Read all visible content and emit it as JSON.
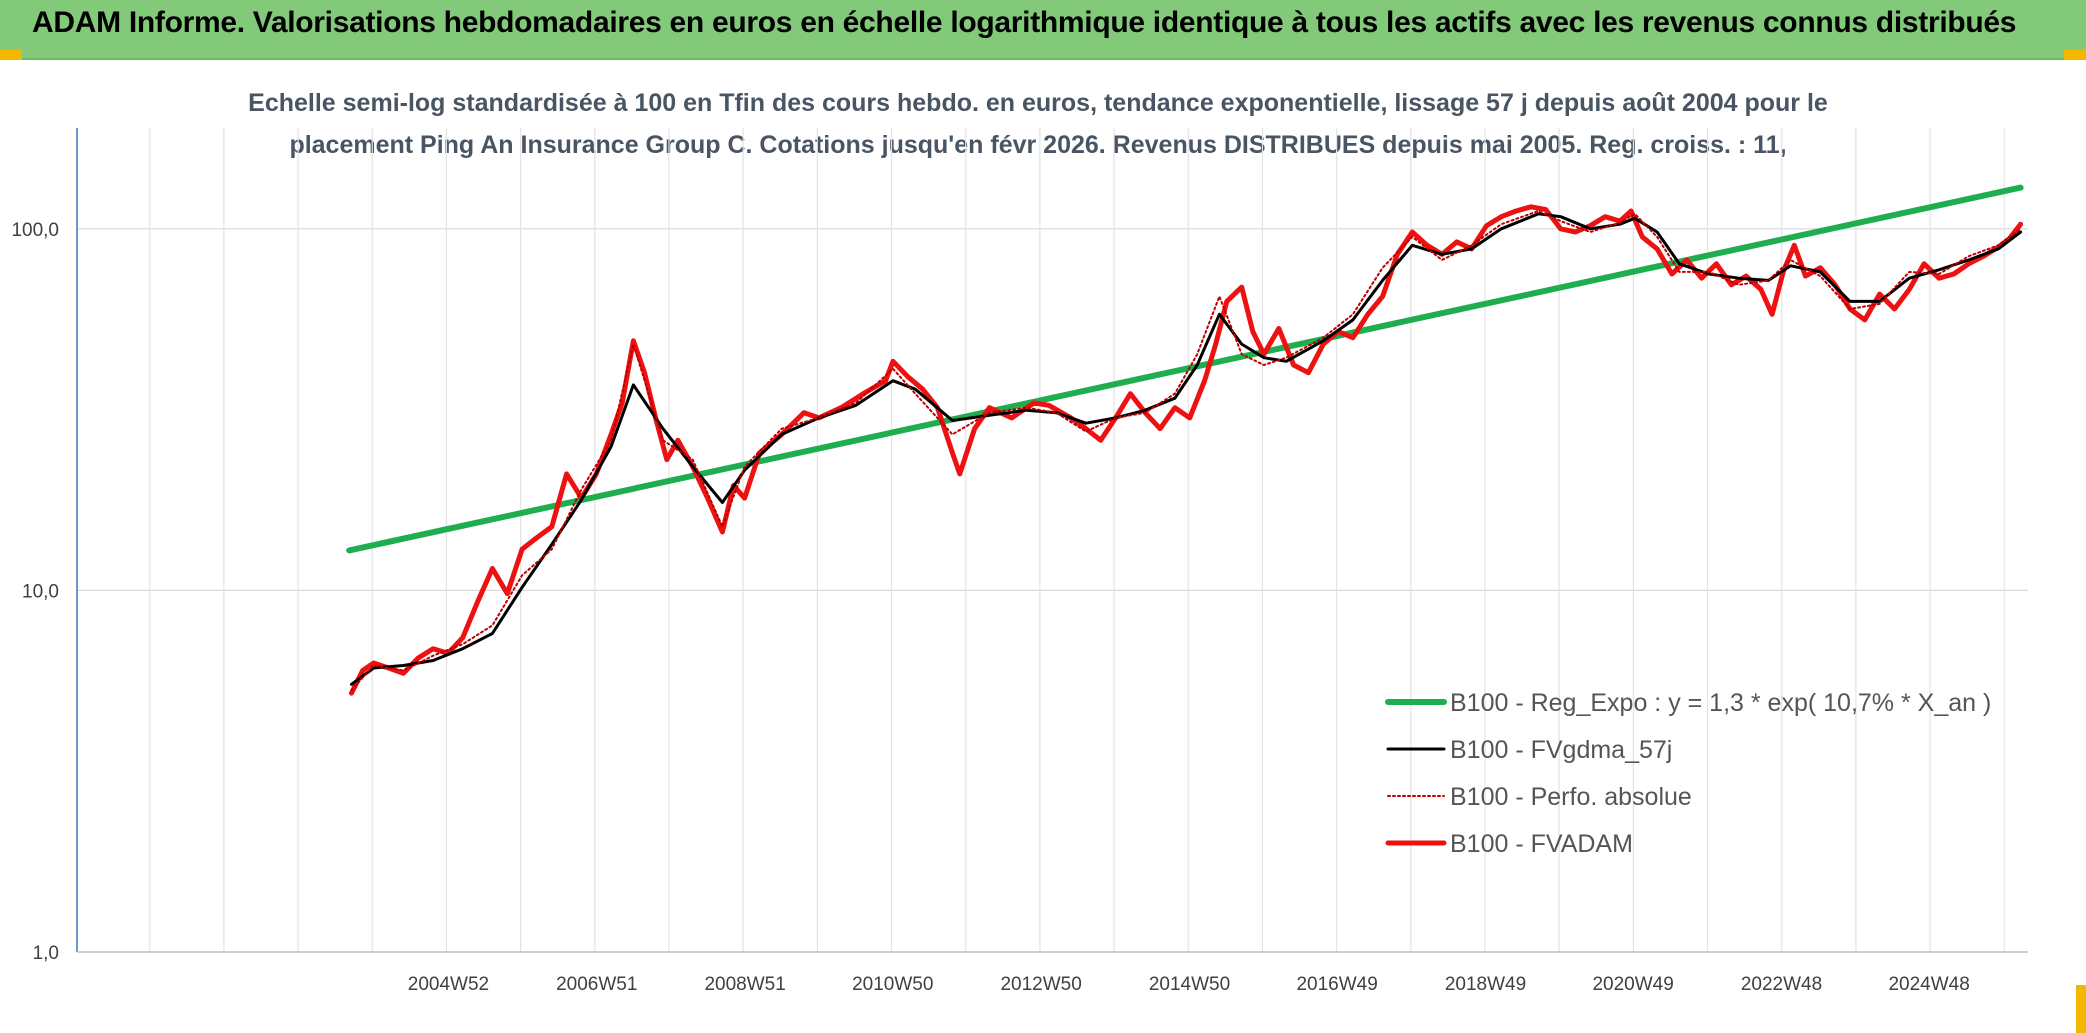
{
  "banner": {
    "title": "ADAM Informe. Valorisations hebdomadaires en euros en échelle logarithmique identique à tous les actifs avec les revenus connus distribués"
  },
  "chart_data": {
    "type": "line",
    "title_lines": [
      "Echelle semi-log standardisée à 100 en Tfin des cours hebdo. en euros, tendance exponentielle, lissage 57 j depuis août 2004 pour le",
      "placement Ping An Insurance Group C. Cotations jusqu'en févr 2026. Revenus DISTRIBUES depuis mai 2005. Reg. croiss. : 11,"
    ],
    "y_scale": "log",
    "ylim": [
      1,
      190
    ],
    "y_ticks": [
      1,
      10,
      100
    ],
    "y_tick_labels": [
      "1,0",
      "10,0",
      "100,0"
    ],
    "xlim": [
      2000.0,
      2026.3
    ],
    "x_ticks": [
      2004.98,
      2006.98,
      2008.98,
      2010.97,
      2012.97,
      2014.97,
      2016.96,
      2018.96,
      2020.95,
      2022.95,
      2024.94
    ],
    "x_tick_labels": [
      "2004W52",
      "2006W51",
      "2008W51",
      "2010W50",
      "2012W50",
      "2014W50",
      "2016W49",
      "2018W49",
      "2020W49",
      "2022W48",
      "2024W48"
    ],
    "grid": true,
    "legend_position": "lower-right",
    "colors": {
      "reg": "#1fae4f",
      "fvgdma": "#000000",
      "perfo": "#c00000",
      "fvadam": "#ee1111"
    },
    "series": [
      {
        "name": "B100 - Reg_Expo : y = 1,3 * exp( 10,7% *  X_an )",
        "style": "green-thick",
        "x": [
          2003.67,
          2026.2
        ],
        "y": [
          12.9,
          130
        ]
      },
      {
        "name": "B100 - FVgdma_57j",
        "style": "black-thin",
        "x": [
          2003.7,
          2004.0,
          2004.4,
          2004.8,
          2005.2,
          2005.6,
          2006.0,
          2006.4,
          2006.8,
          2007.2,
          2007.5,
          2007.9,
          2008.3,
          2008.7,
          2009.0,
          2009.5,
          2010.0,
          2010.5,
          2011.0,
          2011.3,
          2011.8,
          2012.3,
          2012.8,
          2013.2,
          2013.6,
          2014.0,
          2014.4,
          2014.8,
          2015.1,
          2015.4,
          2015.7,
          2016.0,
          2016.3,
          2016.8,
          2017.2,
          2017.6,
          2018.0,
          2018.4,
          2018.8,
          2019.2,
          2019.7,
          2020.0,
          2020.4,
          2020.8,
          2021.0,
          2021.3,
          2021.6,
          2022.0,
          2022.4,
          2022.8,
          2023.1,
          2023.5,
          2023.9,
          2024.3,
          2024.7,
          2025.1,
          2025.5,
          2025.9,
          2026.2
        ],
        "y": [
          5.5,
          6.1,
          6.2,
          6.4,
          6.9,
          7.6,
          10.2,
          13.4,
          17.8,
          25.0,
          37.0,
          28.0,
          22.0,
          17.5,
          21.5,
          27.0,
          30.0,
          32.5,
          38.0,
          36.0,
          29.5,
          30.5,
          31.5,
          31.0,
          29.0,
          30.0,
          31.5,
          34.0,
          42.0,
          58.0,
          48.0,
          44.0,
          43.0,
          49.0,
          56.0,
          72.0,
          90.0,
          85.0,
          88.0,
          100.0,
          110.0,
          108.0,
          100.0,
          103.0,
          107.0,
          98.0,
          80.0,
          75.0,
          73.0,
          72.0,
          79.0,
          76.0,
          63.0,
          63.0,
          73.0,
          77.0,
          82.0,
          88.0,
          98.0
        ]
      },
      {
        "name": "B100 - Perfo. absolue",
        "style": "red-dotted",
        "x": [
          2003.7,
          2004.0,
          2004.4,
          2004.8,
          2005.2,
          2005.6,
          2006.0,
          2006.4,
          2006.8,
          2007.2,
          2007.5,
          2007.9,
          2008.3,
          2008.7,
          2009.0,
          2009.5,
          2010.0,
          2010.5,
          2011.0,
          2011.3,
          2011.8,
          2012.3,
          2012.8,
          2013.2,
          2013.6,
          2014.0,
          2014.4,
          2014.8,
          2015.1,
          2015.4,
          2015.7,
          2016.0,
          2016.3,
          2016.8,
          2017.2,
          2017.6,
          2018.0,
          2018.4,
          2018.8,
          2019.2,
          2019.7,
          2020.0,
          2020.4,
          2020.8,
          2021.0,
          2021.3,
          2021.6,
          2022.0,
          2022.4,
          2022.8,
          2023.1,
          2023.5,
          2023.9,
          2024.3,
          2024.7,
          2025.1,
          2025.5,
          2025.9,
          2026.2
        ],
        "y": [
          5.3,
          6.2,
          6.0,
          6.6,
          7.1,
          8.0,
          11.0,
          13.0,
          19.0,
          26.0,
          48.0,
          26.0,
          23.0,
          15.0,
          22.0,
          28.0,
          30.0,
          33.0,
          41.0,
          35.0,
          27.0,
          31.0,
          32.0,
          31.0,
          27.5,
          30.0,
          31.0,
          35.0,
          45.0,
          65.0,
          45.0,
          42.0,
          44.0,
          50.0,
          58.0,
          78.0,
          95.0,
          82.0,
          90.0,
          103.0,
          112.0,
          105.0,
          98.0,
          104.0,
          110.0,
          95.0,
          76.0,
          76.0,
          70.0,
          72.0,
          82.0,
          74.0,
          60.0,
          62.0,
          76.0,
          75.0,
          84.0,
          90.0,
          100.0
        ]
      },
      {
        "name": "B100 - FVADAM",
        "style": "red-thick",
        "x": [
          2003.7,
          2003.85,
          2004.0,
          2004.2,
          2004.4,
          2004.6,
          2004.8,
          2005.0,
          2005.2,
          2005.4,
          2005.6,
          2005.8,
          2006.0,
          2006.2,
          2006.4,
          2006.6,
          2006.8,
          2007.0,
          2007.2,
          2007.35,
          2007.5,
          2007.65,
          2007.8,
          2007.95,
          2008.1,
          2008.3,
          2008.5,
          2008.7,
          2008.85,
          2009.0,
          2009.2,
          2009.5,
          2009.8,
          2010.0,
          2010.3,
          2010.6,
          2010.9,
          2011.0,
          2011.2,
          2011.4,
          2011.6,
          2011.8,
          2011.9,
          2012.1,
          2012.3,
          2012.6,
          2012.9,
          2013.1,
          2013.4,
          2013.6,
          2013.8,
          2014.0,
          2014.2,
          2014.4,
          2014.6,
          2014.8,
          2015.0,
          2015.2,
          2015.35,
          2015.5,
          2015.7,
          2015.85,
          2016.0,
          2016.2,
          2016.4,
          2016.6,
          2016.8,
          2017.0,
          2017.2,
          2017.4,
          2017.6,
          2017.8,
          2018.0,
          2018.2,
          2018.4,
          2018.6,
          2018.8,
          2019.0,
          2019.2,
          2019.4,
          2019.6,
          2019.8,
          2020.0,
          2020.2,
          2020.4,
          2020.6,
          2020.8,
          2020.95,
          2021.1,
          2021.3,
          2021.5,
          2021.7,
          2021.9,
          2022.1,
          2022.3,
          2022.5,
          2022.7,
          2022.85,
          2023.0,
          2023.15,
          2023.3,
          2023.5,
          2023.7,
          2023.9,
          2024.1,
          2024.3,
          2024.5,
          2024.7,
          2024.9,
          2025.1,
          2025.3,
          2025.5,
          2025.7,
          2025.9,
          2026.05,
          2026.2
        ],
        "y": [
          5.2,
          6.0,
          6.3,
          6.1,
          5.9,
          6.5,
          6.9,
          6.7,
          7.4,
          9.3,
          11.5,
          9.8,
          13.0,
          14.0,
          15.0,
          21.0,
          18.0,
          21.0,
          27.0,
          33.0,
          49.0,
          40.0,
          30.0,
          23.0,
          26.0,
          22.0,
          18.0,
          14.5,
          19.5,
          18.0,
          24.0,
          27.0,
          31.0,
          30.0,
          32.0,
          35.0,
          38.0,
          43.0,
          39.0,
          36.0,
          32.0,
          24.0,
          21.0,
          28.0,
          32.0,
          30.0,
          33.0,
          32.5,
          30.0,
          28.0,
          26.0,
          30.0,
          35.0,
          31.0,
          28.0,
          32.0,
          30.0,
          38.0,
          48.0,
          63.0,
          69.0,
          52.0,
          45.0,
          53.0,
          42.0,
          40.0,
          48.0,
          52.0,
          50.0,
          58.0,
          65.0,
          85.0,
          98.0,
          90.0,
          85.0,
          92.0,
          88.0,
          102.0,
          108.0,
          112.0,
          115.0,
          113.0,
          100.0,
          98.0,
          102.0,
          108.0,
          105.0,
          112.0,
          95.0,
          88.0,
          75.0,
          82.0,
          73.0,
          80.0,
          70.0,
          74.0,
          68.0,
          58.0,
          76.0,
          90.0,
          74.0,
          78.0,
          70.0,
          60.0,
          56.0,
          66.0,
          60.0,
          68.0,
          80.0,
          73.0,
          75.0,
          80.0,
          84.0,
          89.0,
          94.0,
          103.0
        ]
      }
    ]
  }
}
